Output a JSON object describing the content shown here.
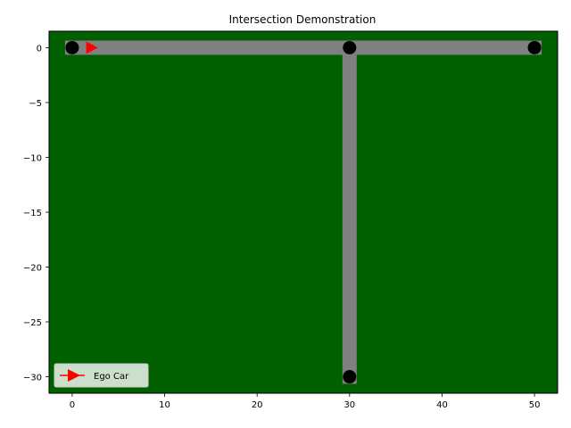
{
  "chart_data": {
    "type": "scatter",
    "title": "Intersection Demonstration",
    "xlabel": "",
    "ylabel": "",
    "xlim": [
      -2.5,
      52.5
    ],
    "ylim": [
      -31.5,
      1.5
    ],
    "xticks": [
      0,
      10,
      20,
      30,
      40,
      50
    ],
    "yticks": [
      0,
      -5,
      -10,
      -15,
      -20,
      -25,
      -30
    ],
    "xtick_labels": [
      "0",
      "10",
      "20",
      "30",
      "40",
      "50"
    ],
    "ytick_labels": [
      "0",
      "−5",
      "−10",
      "−15",
      "−20",
      "−25",
      "−30"
    ],
    "grid": false,
    "background_color": "#006000",
    "roads": [
      {
        "from": [
          0,
          0
        ],
        "to": [
          50,
          0
        ],
        "color": "#808080"
      },
      {
        "from": [
          30,
          0
        ],
        "to": [
          30,
          -30
        ],
        "color": "#808080"
      }
    ],
    "nodes": {
      "x": [
        0,
        30,
        50,
        30
      ],
      "y": [
        0,
        0,
        0,
        -30
      ],
      "color": "#000000"
    },
    "ego_car": {
      "name": "Ego Car",
      "x": 2,
      "y": 0,
      "marker": "right-triangle",
      "color": "#ff0000"
    },
    "legend": {
      "position": "lower-left",
      "entries": [
        "Ego Car"
      ]
    }
  }
}
